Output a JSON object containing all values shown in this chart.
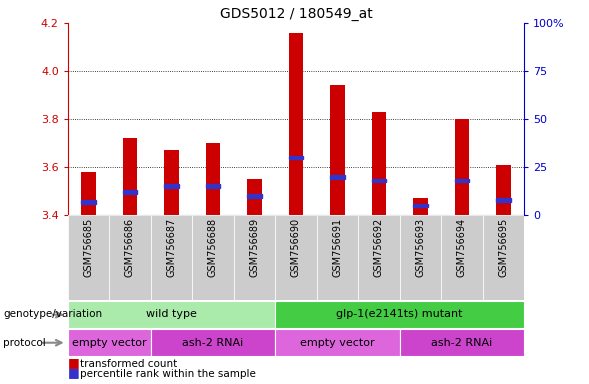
{
  "title": "GDS5012 / 180549_at",
  "samples": [
    "GSM756685",
    "GSM756686",
    "GSM756687",
    "GSM756688",
    "GSM756689",
    "GSM756690",
    "GSM756691",
    "GSM756692",
    "GSM756693",
    "GSM756694",
    "GSM756695"
  ],
  "transformed_counts": [
    3.58,
    3.72,
    3.67,
    3.7,
    3.55,
    4.16,
    3.94,
    3.83,
    3.47,
    3.8,
    3.61
  ],
  "percentile_ranks": [
    7,
    12,
    15,
    15,
    10,
    30,
    20,
    18,
    5,
    18,
    8
  ],
  "ylim_left": [
    3.4,
    4.2
  ],
  "ylim_right": [
    0,
    100
  ],
  "yticks_left": [
    3.4,
    3.6,
    3.8,
    4.0,
    4.2
  ],
  "yticks_right": [
    0,
    25,
    50,
    75,
    100
  ],
  "ytick_right_labels": [
    "0",
    "25",
    "50",
    "75",
    "100%"
  ],
  "bar_color": "#cc0000",
  "blue_color": "#3333cc",
  "bar_bottom": 3.4,
  "bar_width": 0.35,
  "genotype_groups": [
    {
      "label": "wild type",
      "start": 0,
      "end": 4,
      "color": "#aaeaaa"
    },
    {
      "label": "glp-1(e2141ts) mutant",
      "start": 5,
      "end": 10,
      "color": "#44cc44"
    }
  ],
  "protocol_groups": [
    {
      "label": "empty vector",
      "start": 0,
      "end": 1,
      "color": "#dd66dd"
    },
    {
      "label": "ash-2 RNAi",
      "start": 2,
      "end": 4,
      "color": "#cc44cc"
    },
    {
      "label": "empty vector",
      "start": 5,
      "end": 7,
      "color": "#dd66dd"
    },
    {
      "label": "ash-2 RNAi",
      "start": 8,
      "end": 10,
      "color": "#cc44cc"
    }
  ],
  "legend_items": [
    {
      "label": "transformed count",
      "color": "#cc0000"
    },
    {
      "label": "percentile rank within the sample",
      "color": "#3333cc"
    }
  ],
  "left_axis_color": "#cc0000",
  "right_axis_color": "#0000cc",
  "genotype_label": "genotype/variation",
  "protocol_label": "protocol",
  "xtick_bg_color": "#cccccc",
  "grid_lines": [
    3.6,
    3.8,
    4.0
  ]
}
